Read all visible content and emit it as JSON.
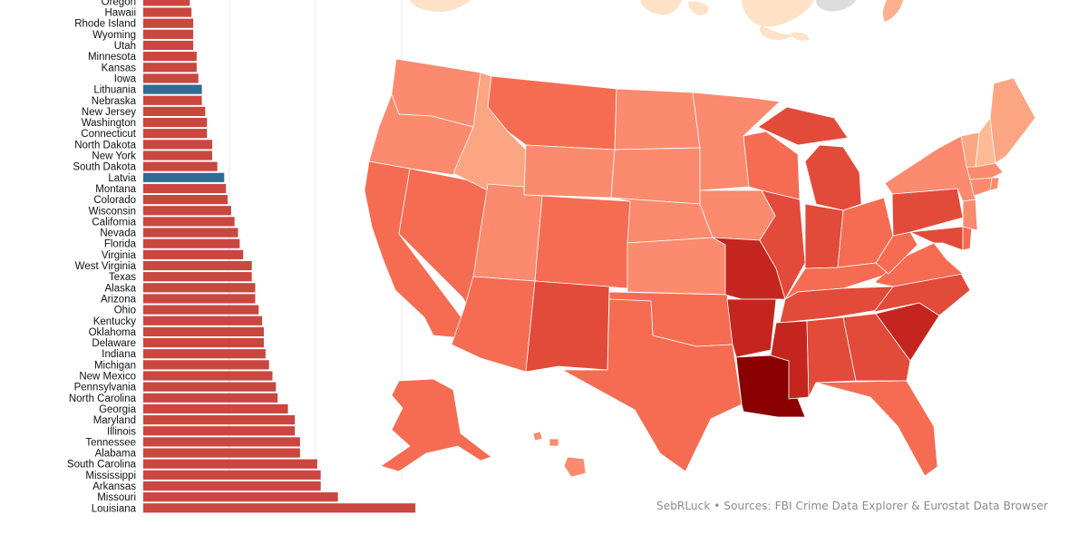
{
  "chart_data": [
    {
      "type": "bar",
      "orientation": "horizontal",
      "categories": [
        "Oregon",
        "Hawaii",
        "Rhode Island",
        "Wyoming",
        "Utah",
        "Minnesota",
        "Kansas",
        "Iowa",
        "Lithuania",
        "Nebraska",
        "New Jersey",
        "Washington",
        "Connecticut",
        "North Dakota",
        "New York",
        "South Dakota",
        "Latvia",
        "Montana",
        "Colorado",
        "Wisconsin",
        "California",
        "Nevada",
        "Florida",
        "Virginia",
        "West Virginia",
        "Texas",
        "Alaska",
        "Arizona",
        "Ohio",
        "Kentucky",
        "Oklahoma",
        "Delaware",
        "Indiana",
        "Michigan",
        "New Mexico",
        "Pennsylvania",
        "North Carolina",
        "Georgia",
        "Maryland",
        "Illinois",
        "Tennessee",
        "Alabama",
        "South Carolina",
        "Mississippi",
        "Arkansas",
        "Missouri",
        "Louisiana"
      ],
      "values": [
        2.7,
        2.8,
        2.9,
        2.9,
        2.9,
        3.1,
        3.1,
        3.2,
        3.4,
        3.4,
        3.6,
        3.7,
        3.7,
        4.0,
        4.0,
        4.3,
        4.7,
        4.8,
        4.9,
        5.1,
        5.3,
        5.5,
        5.6,
        5.8,
        6.3,
        6.3,
        6.5,
        6.5,
        6.7,
        6.9,
        7.0,
        7.0,
        7.1,
        7.3,
        7.5,
        7.7,
        7.8,
        8.4,
        8.8,
        8.8,
        9.1,
        9.1,
        10.1,
        10.3,
        10.3,
        11.3,
        15.8
      ],
      "highlighted": [
        "Lithuania",
        "Latvia"
      ],
      "colors": {
        "us_state": "#c9473f",
        "eu_country": "#2f6c94"
      },
      "xlim": [
        0,
        16
      ],
      "grid": true
    },
    {
      "type": "heatmap",
      "kind": "choropleth",
      "levels": {
        "1": [
          "New Hampshire"
        ],
        "2": [
          "Idaho",
          "Maine",
          "Vermont"
        ],
        "3": [
          "Oregon",
          "Wyoming",
          "Utah",
          "Minnesota",
          "Kansas",
          "Iowa",
          "Nebraska",
          "New Jersey",
          "Washington",
          "Connecticut",
          "North Dakota",
          "New York",
          "South Dakota",
          "Rhode Island",
          "Massachusetts",
          "Hawaii"
        ],
        "4": [
          "Montana",
          "Colorado",
          "Wisconsin",
          "California",
          "Nevada",
          "Florida",
          "Virginia",
          "West Virginia",
          "Texas",
          "Alaska",
          "Arizona",
          "Ohio",
          "Kentucky",
          "Oklahoma",
          "Delaware"
        ],
        "5": [
          "Indiana",
          "Michigan",
          "New Mexico",
          "Pennsylvania",
          "North Carolina",
          "Georgia",
          "Maryland",
          "Illinois",
          "Tennessee",
          "Alabama"
        ],
        "6": [
          "South Carolina",
          "Mississippi",
          "Arkansas",
          "Missouri"
        ],
        "7": [
          "Louisiana"
        ]
      },
      "palette": [
        "#fde0c5",
        "#fcbb95",
        "#fca583",
        "#fb8a6e",
        "#f56c52",
        "#e24a3a",
        "#c4261f",
        "#8b0000"
      ]
    }
  ],
  "footer": {
    "credit": "SebRLuck • Sources: FBI Crime Data Explorer & Eurostat Data Browser"
  }
}
